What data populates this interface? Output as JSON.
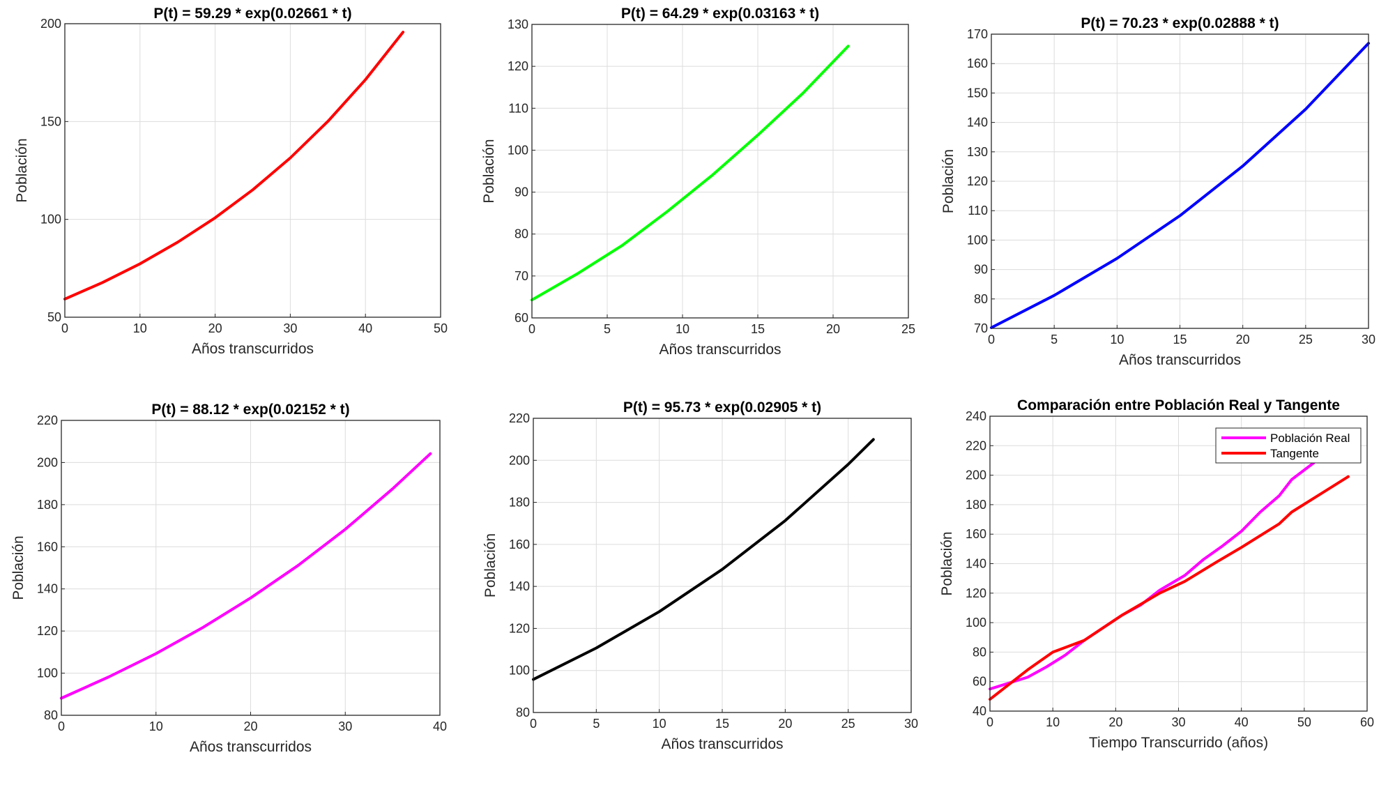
{
  "chart_data": [
    {
      "type": "line",
      "title": "P(t) = 59.29 * exp(0.02661 * t)",
      "xlabel": "Años transcurridos",
      "ylabel": "Población",
      "xlim": [
        0,
        50
      ],
      "ylim": [
        50,
        200
      ],
      "xticks": [
        0,
        10,
        20,
        30,
        40,
        50
      ],
      "yticks": [
        50,
        100,
        150,
        200
      ],
      "grid": true,
      "series": [
        {
          "color": "#ff0000",
          "x": [
            0,
            5,
            10,
            15,
            20,
            25,
            30,
            35,
            40,
            45
          ],
          "y": [
            59.29,
            67.7,
            77.3,
            88.3,
            100.8,
            115.1,
            131.4,
            150.1,
            171.4,
            195.7
          ]
        }
      ]
    },
    {
      "type": "line",
      "title": "P(t) = 64.29 * exp(0.03163 * t)",
      "xlabel": "Años transcurridos",
      "ylabel": "Población",
      "xlim": [
        0,
        25
      ],
      "ylim": [
        60,
        130
      ],
      "xticks": [
        0,
        5,
        10,
        15,
        20,
        25
      ],
      "yticks": [
        60,
        70,
        80,
        90,
        100,
        110,
        120,
        130
      ],
      "grid": true,
      "series": [
        {
          "color": "#00ff00",
          "x": [
            0,
            3,
            6,
            9,
            12,
            15,
            18,
            21
          ],
          "y": [
            64.29,
            70.5,
            77.3,
            85.4,
            94.1,
            103.6,
            113.6,
            124.8
          ]
        }
      ]
    },
    {
      "type": "line",
      "title": "P(t) = 70.23 * exp(0.02888 * t)",
      "xlabel": "Años transcurridos",
      "ylabel": "Población",
      "xlim": [
        0,
        30
      ],
      "ylim": [
        70,
        170
      ],
      "xticks": [
        0,
        5,
        10,
        15,
        20,
        25,
        30
      ],
      "yticks": [
        70,
        80,
        90,
        100,
        110,
        120,
        130,
        140,
        150,
        160,
        170
      ],
      "grid": true,
      "series": [
        {
          "color": "#0000ff",
          "x": [
            0,
            5,
            10,
            15,
            20,
            25,
            30
          ],
          "y": [
            70.23,
            81.2,
            93.8,
            108.3,
            125.2,
            144.5,
            166.9
          ]
        }
      ]
    },
    {
      "type": "line",
      "title": "P(t) = 88.12 * exp(0.02152 * t)",
      "xlabel": "Años transcurridos",
      "ylabel": "Población",
      "xlim": [
        0,
        40
      ],
      "ylim": [
        80,
        220
      ],
      "xticks": [
        0,
        10,
        20,
        30,
        40
      ],
      "yticks": [
        80,
        100,
        120,
        140,
        160,
        180,
        200,
        220
      ],
      "grid": true,
      "series": [
        {
          "color": "#ff00ff",
          "x": [
            0,
            5,
            10,
            15,
            20,
            25,
            30,
            35,
            39
          ],
          "y": [
            88.12,
            98.2,
            109.3,
            121.8,
            135.7,
            151.1,
            168.3,
            187.5,
            204.2
          ]
        }
      ]
    },
    {
      "type": "line",
      "title": "P(t) = 95.73 * exp(0.02905 * t)",
      "xlabel": "Años transcurridos",
      "ylabel": "Población",
      "xlim": [
        0,
        30
      ],
      "ylim": [
        80,
        220
      ],
      "xticks": [
        0,
        5,
        10,
        15,
        20,
        25,
        30
      ],
      "yticks": [
        80,
        100,
        120,
        140,
        160,
        180,
        200,
        220
      ],
      "grid": true,
      "series": [
        {
          "color": "#000000",
          "x": [
            0,
            5,
            10,
            15,
            20,
            25,
            27
          ],
          "y": [
            95.73,
            110.7,
            128.0,
            148.1,
            171.3,
            198.1,
            209.9
          ]
        }
      ]
    },
    {
      "type": "line",
      "title": "Comparación entre Población Real y Tangente",
      "xlabel": "Tiempo Transcurrido (años)",
      "ylabel": "Población",
      "xlim": [
        0,
        60
      ],
      "ylim": [
        40,
        240
      ],
      "xticks": [
        0,
        10,
        20,
        30,
        40,
        50,
        60
      ],
      "yticks": [
        40,
        60,
        80,
        100,
        120,
        140,
        160,
        180,
        200,
        220,
        240
      ],
      "grid": true,
      "legend": "top-right",
      "series": [
        {
          "name": "Población Real",
          "color": "#ff00ff",
          "x": [
            0,
            6,
            9,
            12,
            15,
            21,
            24,
            27,
            31,
            34,
            37,
            40,
            43,
            46,
            48,
            52
          ],
          "y": [
            55,
            63,
            70,
            78,
            88,
            105,
            112,
            122,
            132,
            143,
            152,
            162,
            175,
            186,
            197,
            210
          ]
        },
        {
          "name": "Tangente",
          "color": "#ff0000",
          "x": [
            0,
            6,
            10,
            15,
            21,
            27,
            31,
            36,
            40,
            46,
            48,
            57
          ],
          "y": [
            48,
            68,
            80,
            88,
            105,
            120,
            128,
            141,
            151,
            167,
            175,
            199
          ]
        }
      ]
    }
  ]
}
